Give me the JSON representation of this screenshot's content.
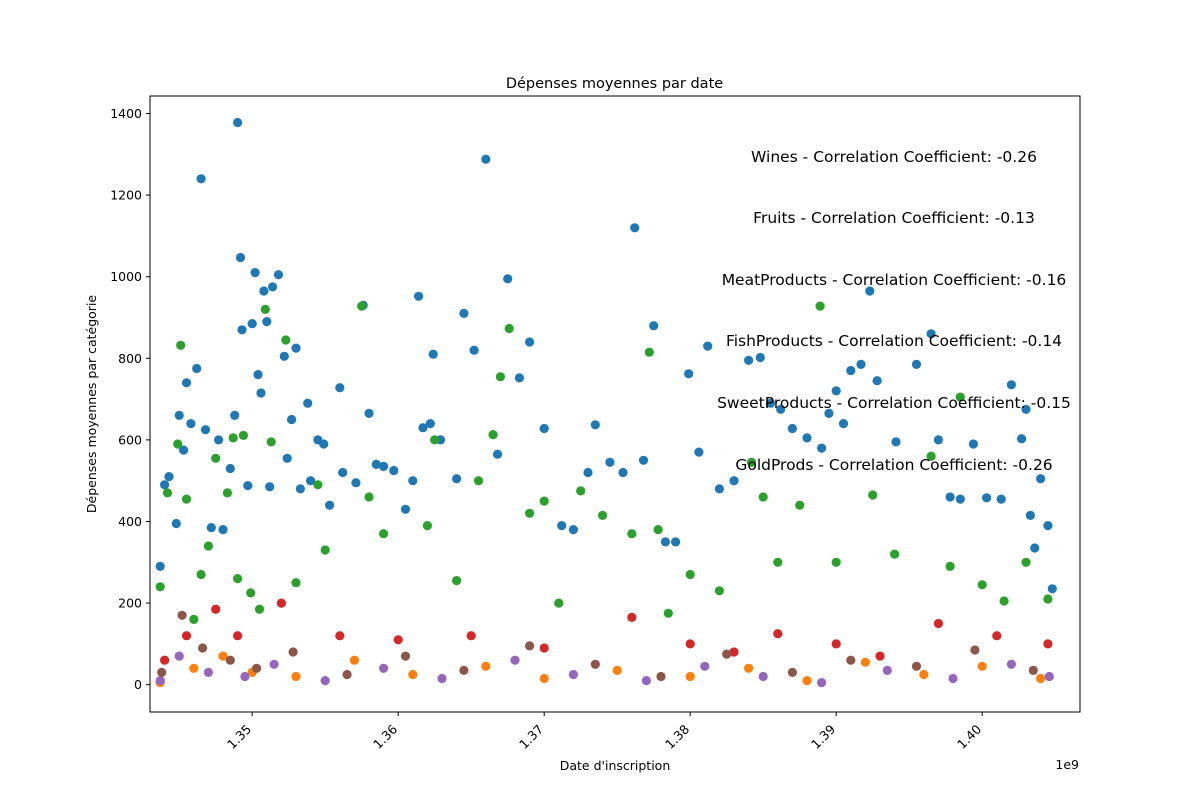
{
  "chart_data": {
    "type": "scatter",
    "title": "Dépenses moyennes par date",
    "xlabel": "Date d'inscription",
    "ylabel": "Dépenses moyennes par catégorie",
    "x_offset_label": "1e9",
    "xlim": [
      1.343,
      1.4067
    ],
    "ylim": [
      -67,
      1443
    ],
    "x_ticks": [
      1.35,
      1.36,
      1.37,
      1.38,
      1.39,
      1.4
    ],
    "x_tick_labels": [
      "1.35",
      "1.36",
      "1.37",
      "1.38",
      "1.39",
      "1.40"
    ],
    "y_ticks": [
      0,
      200,
      400,
      600,
      800,
      1000,
      1200,
      1400
    ],
    "y_tick_labels": [
      "0",
      "200",
      "400",
      "600",
      "800",
      "1000",
      "1200",
      "1400"
    ],
    "grid": false,
    "legend": "none",
    "annotations": [
      "Wines - Correlation Coefficient: -0.26",
      "Fruits - Correlation Coefficient: -0.13",
      "MeatProducts - Correlation Coefficient: -0.16",
      "FishProducts - Correlation Coefficient: -0.14",
      "SweetProducts - Correlation Coefficient: -0.15",
      "GoldProds - Correlation Coefficient: -0.26"
    ],
    "series": [
      {
        "color": "#1f77b4",
        "points": [
          [
            1.3437,
            290
          ],
          [
            1.344,
            490
          ],
          [
            1.3443,
            510
          ],
          [
            1.3448,
            395
          ],
          [
            1.345,
            660
          ],
          [
            1.3453,
            575
          ],
          [
            1.3455,
            740
          ],
          [
            1.3458,
            640
          ],
          [
            1.3462,
            775
          ],
          [
            1.3465,
            1240
          ],
          [
            1.3468,
            625
          ],
          [
            1.3472,
            385
          ],
          [
            1.3477,
            600
          ],
          [
            1.348,
            380
          ],
          [
            1.3485,
            530
          ],
          [
            1.3488,
            660
          ],
          [
            1.349,
            1378
          ],
          [
            1.3492,
            1047
          ],
          [
            1.3493,
            870
          ],
          [
            1.3497,
            488
          ],
          [
            1.35,
            885
          ],
          [
            1.3502,
            1010
          ],
          [
            1.3504,
            760
          ],
          [
            1.3506,
            715
          ],
          [
            1.3508,
            965
          ],
          [
            1.351,
            890
          ],
          [
            1.3512,
            485
          ],
          [
            1.3514,
            975
          ],
          [
            1.3518,
            1005
          ],
          [
            1.3522,
            805
          ],
          [
            1.3524,
            555
          ],
          [
            1.3527,
            650
          ],
          [
            1.353,
            825
          ],
          [
            1.3533,
            480
          ],
          [
            1.3538,
            690
          ],
          [
            1.354,
            500
          ],
          [
            1.3545,
            600
          ],
          [
            1.3549,
            590
          ],
          [
            1.3553,
            440
          ],
          [
            1.356,
            728
          ],
          [
            1.3562,
            520
          ],
          [
            1.3571,
            495
          ],
          [
            1.3576,
            930
          ],
          [
            1.358,
            665
          ],
          [
            1.3585,
            540
          ],
          [
            1.359,
            535
          ],
          [
            1.3597,
            525
          ],
          [
            1.3605,
            430
          ],
          [
            1.361,
            500
          ],
          [
            1.3614,
            952
          ],
          [
            1.3617,
            630
          ],
          [
            1.3622,
            640
          ],
          [
            1.3624,
            810
          ],
          [
            1.3629,
            600
          ],
          [
            1.364,
            505
          ],
          [
            1.3645,
            910
          ],
          [
            1.3652,
            820
          ],
          [
            1.366,
            1288
          ],
          [
            1.3668,
            565
          ],
          [
            1.3675,
            995
          ],
          [
            1.3683,
            752
          ],
          [
            1.369,
            840
          ],
          [
            1.37,
            628
          ],
          [
            1.3712,
            390
          ],
          [
            1.372,
            380
          ],
          [
            1.373,
            520
          ],
          [
            1.3735,
            637
          ],
          [
            1.3745,
            545
          ],
          [
            1.3754,
            520
          ],
          [
            1.3762,
            1120
          ],
          [
            1.3768,
            550
          ],
          [
            1.3775,
            880
          ],
          [
            1.3783,
            350
          ],
          [
            1.379,
            350
          ],
          [
            1.3799,
            762
          ],
          [
            1.3806,
            570
          ],
          [
            1.3812,
            830
          ],
          [
            1.382,
            480
          ],
          [
            1.383,
            500
          ],
          [
            1.384,
            795
          ],
          [
            1.3848,
            802
          ],
          [
            1.3855,
            690
          ],
          [
            1.3862,
            675
          ],
          [
            1.387,
            628
          ],
          [
            1.388,
            605
          ],
          [
            1.389,
            580
          ],
          [
            1.3895,
            665
          ],
          [
            1.39,
            720
          ],
          [
            1.3905,
            640
          ],
          [
            1.391,
            770
          ],
          [
            1.3917,
            785
          ],
          [
            1.3923,
            965
          ],
          [
            1.3928,
            745
          ],
          [
            1.3941,
            595
          ],
          [
            1.3955,
            785
          ],
          [
            1.3965,
            860
          ],
          [
            1.397,
            600
          ],
          [
            1.3978,
            460
          ],
          [
            1.3985,
            455
          ],
          [
            1.3994,
            590
          ],
          [
            1.4003,
            458
          ],
          [
            1.4013,
            455
          ],
          [
            1.402,
            735
          ],
          [
            1.4027,
            603
          ],
          [
            1.403,
            675
          ],
          [
            1.4033,
            415
          ],
          [
            1.4036,
            335
          ],
          [
            1.404,
            505
          ],
          [
            1.4045,
            390
          ],
          [
            1.4048,
            235
          ]
        ]
      },
      {
        "color": "#2ca02c",
        "points": [
          [
            1.3437,
            240
          ],
          [
            1.3442,
            470
          ],
          [
            1.3449,
            590
          ],
          [
            1.3451,
            832
          ],
          [
            1.3455,
            455
          ],
          [
            1.346,
            160
          ],
          [
            1.3465,
            270
          ],
          [
            1.347,
            340
          ],
          [
            1.3475,
            555
          ],
          [
            1.3483,
            470
          ],
          [
            1.3487,
            605
          ],
          [
            1.349,
            260
          ],
          [
            1.3494,
            611
          ],
          [
            1.3499,
            225
          ],
          [
            1.3505,
            185
          ],
          [
            1.3509,
            920
          ],
          [
            1.3513,
            595
          ],
          [
            1.3523,
            845
          ],
          [
            1.353,
            250
          ],
          [
            1.3545,
            490
          ],
          [
            1.355,
            330
          ],
          [
            1.3575,
            928
          ],
          [
            1.358,
            460
          ],
          [
            1.359,
            370
          ],
          [
            1.362,
            390
          ],
          [
            1.3625,
            600
          ],
          [
            1.364,
            255
          ],
          [
            1.3655,
            500
          ],
          [
            1.3665,
            613
          ],
          [
            1.367,
            755
          ],
          [
            1.3676,
            873
          ],
          [
            1.369,
            420
          ],
          [
            1.37,
            450
          ],
          [
            1.371,
            200
          ],
          [
            1.3725,
            475
          ],
          [
            1.374,
            415
          ],
          [
            1.376,
            370
          ],
          [
            1.3772,
            815
          ],
          [
            1.3778,
            380
          ],
          [
            1.3785,
            175
          ],
          [
            1.38,
            270
          ],
          [
            1.382,
            230
          ],
          [
            1.3842,
            545
          ],
          [
            1.385,
            460
          ],
          [
            1.386,
            300
          ],
          [
            1.3875,
            440
          ],
          [
            1.3889,
            928
          ],
          [
            1.39,
            300
          ],
          [
            1.3925,
            465
          ],
          [
            1.394,
            320
          ],
          [
            1.3965,
            560
          ],
          [
            1.3978,
            290
          ],
          [
            1.3985,
            705
          ],
          [
            1.4,
            245
          ],
          [
            1.4015,
            205
          ],
          [
            1.403,
            300
          ],
          [
            1.4045,
            210
          ]
        ]
      },
      {
        "color": "#d62728",
        "points": [
          [
            1.344,
            60
          ],
          [
            1.3455,
            120
          ],
          [
            1.3475,
            185
          ],
          [
            1.349,
            120
          ],
          [
            1.352,
            200
          ],
          [
            1.356,
            120
          ],
          [
            1.36,
            110
          ],
          [
            1.365,
            120
          ],
          [
            1.37,
            90
          ],
          [
            1.376,
            165
          ],
          [
            1.38,
            100
          ],
          [
            1.383,
            80
          ],
          [
            1.386,
            125
          ],
          [
            1.39,
            100
          ],
          [
            1.393,
            70
          ],
          [
            1.397,
            150
          ],
          [
            1.401,
            120
          ],
          [
            1.4045,
            100
          ]
        ]
      },
      {
        "color": "#ff7f0e",
        "points": [
          [
            1.3437,
            5
          ],
          [
            1.346,
            40
          ],
          [
            1.348,
            70
          ],
          [
            1.35,
            30
          ],
          [
            1.353,
            20
          ],
          [
            1.357,
            60
          ],
          [
            1.361,
            25
          ],
          [
            1.366,
            45
          ],
          [
            1.37,
            15
          ],
          [
            1.375,
            35
          ],
          [
            1.38,
            20
          ],
          [
            1.384,
            40
          ],
          [
            1.388,
            10
          ],
          [
            1.392,
            55
          ],
          [
            1.396,
            25
          ],
          [
            1.4,
            45
          ],
          [
            1.404,
            15
          ]
        ]
      },
      {
        "color": "#9467bd",
        "points": [
          [
            1.3437,
            10
          ],
          [
            1.345,
            70
          ],
          [
            1.347,
            30
          ],
          [
            1.3495,
            20
          ],
          [
            1.3515,
            50
          ],
          [
            1.355,
            10
          ],
          [
            1.359,
            40
          ],
          [
            1.363,
            15
          ],
          [
            1.368,
            60
          ],
          [
            1.372,
            25
          ],
          [
            1.377,
            10
          ],
          [
            1.381,
            45
          ],
          [
            1.385,
            20
          ],
          [
            1.389,
            5
          ],
          [
            1.3935,
            35
          ],
          [
            1.398,
            15
          ],
          [
            1.402,
            50
          ],
          [
            1.4046,
            20
          ]
        ]
      },
      {
        "color": "#8c564b",
        "points": [
          [
            1.3438,
            30
          ],
          [
            1.3452,
            170
          ],
          [
            1.3466,
            90
          ],
          [
            1.3485,
            60
          ],
          [
            1.3503,
            40
          ],
          [
            1.3528,
            80
          ],
          [
            1.3565,
            25
          ],
          [
            1.3605,
            70
          ],
          [
            1.3645,
            35
          ],
          [
            1.369,
            95
          ],
          [
            1.3735,
            50
          ],
          [
            1.378,
            20
          ],
          [
            1.3825,
            75
          ],
          [
            1.387,
            30
          ],
          [
            1.391,
            60
          ],
          [
            1.3955,
            45
          ],
          [
            1.3995,
            85
          ],
          [
            1.4035,
            35
          ]
        ]
      }
    ]
  }
}
